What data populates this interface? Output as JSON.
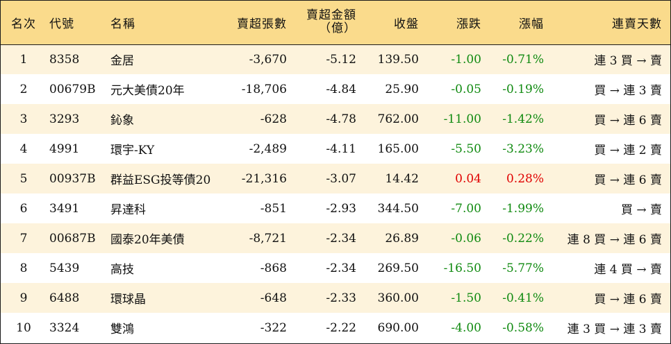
{
  "headers": {
    "rank": "名次",
    "code": "代號",
    "name": "名稱",
    "sell_volume": "賣超張數",
    "sell_amount_line1": "賣超金額",
    "sell_amount_line2": "（億）",
    "close": "收盤",
    "change": "漲跌",
    "change_pct": "漲幅",
    "sell_days": "連賣天數"
  },
  "colors": {
    "header_bg": "#fadb8c",
    "stripe_bg": "#fdf3dc",
    "down": "#108a10",
    "up": "#e00000"
  },
  "rows": [
    {
      "rank": "1",
      "code": "8358",
      "name": "金居",
      "sell_volume": "-3,670",
      "sell_amount": "-5.12",
      "close": "139.50",
      "change": "-1.00",
      "change_pct": "-0.71%",
      "direction": "down",
      "days": "連 3 買 → 賣"
    },
    {
      "rank": "2",
      "code": "00679B",
      "name": "元大美債20年",
      "sell_volume": "-18,706",
      "sell_amount": "-4.84",
      "close": "25.90",
      "change": "-0.05",
      "change_pct": "-0.19%",
      "direction": "down",
      "days": "買 → 連 3 賣"
    },
    {
      "rank": "3",
      "code": "3293",
      "name": "鈊象",
      "sell_volume": "-628",
      "sell_amount": "-4.78",
      "close": "762.00",
      "change": "-11.00",
      "change_pct": "-1.42%",
      "direction": "down",
      "days": "買 → 連 6 賣"
    },
    {
      "rank": "4",
      "code": "4991",
      "name": "環宇-KY",
      "sell_volume": "-2,489",
      "sell_amount": "-4.11",
      "close": "165.00",
      "change": "-5.50",
      "change_pct": "-3.23%",
      "direction": "down",
      "days": "買 → 連 2 賣"
    },
    {
      "rank": "5",
      "code": "00937B",
      "name": "群益ESG投等債20",
      "sell_volume": "-21,316",
      "sell_amount": "-3.07",
      "close": "14.42",
      "change": "0.04",
      "change_pct": "0.28%",
      "direction": "up",
      "days": "買 → 連 6 賣"
    },
    {
      "rank": "6",
      "code": "3491",
      "name": "昇達科",
      "sell_volume": "-851",
      "sell_amount": "-2.93",
      "close": "344.50",
      "change": "-7.00",
      "change_pct": "-1.99%",
      "direction": "down",
      "days": "買 → 賣"
    },
    {
      "rank": "7",
      "code": "00687B",
      "name": "國泰20年美債",
      "sell_volume": "-8,721",
      "sell_amount": "-2.34",
      "close": "26.89",
      "change": "-0.06",
      "change_pct": "-0.22%",
      "direction": "down",
      "days": "連 8 買 → 連 6 賣"
    },
    {
      "rank": "8",
      "code": "5439",
      "name": "高技",
      "sell_volume": "-868",
      "sell_amount": "-2.34",
      "close": "269.50",
      "change": "-16.50",
      "change_pct": "-5.77%",
      "direction": "down",
      "days": "連 4 買 → 賣"
    },
    {
      "rank": "9",
      "code": "6488",
      "name": "環球晶",
      "sell_volume": "-648",
      "sell_amount": "-2.33",
      "close": "360.00",
      "change": "-1.50",
      "change_pct": "-0.41%",
      "direction": "down",
      "days": "買 → 連 6 賣"
    },
    {
      "rank": "10",
      "code": "3324",
      "name": "雙鴻",
      "sell_volume": "-322",
      "sell_amount": "-2.22",
      "close": "690.00",
      "change": "-4.00",
      "change_pct": "-0.58%",
      "direction": "down",
      "days": "連 3 買 → 連 3 賣"
    }
  ]
}
